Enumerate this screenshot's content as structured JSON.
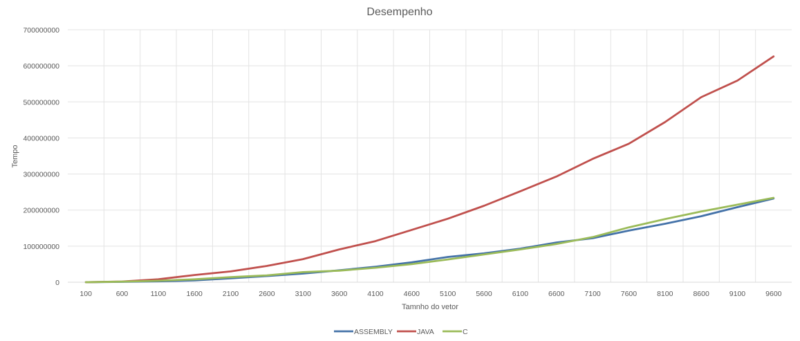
{
  "chart_data": {
    "type": "line",
    "title": "Desempenho",
    "xlabel": "Tamnho do vetor",
    "ylabel": "Tempo",
    "ylim": [
      0,
      700000000
    ],
    "yticks": [
      "0",
      "100000000",
      "200000000",
      "300000000",
      "400000000",
      "500000000",
      "600000000",
      "700000000"
    ],
    "grid": true,
    "legend_position": "bottom",
    "categories": [
      "100",
      "600",
      "1100",
      "1600",
      "2100",
      "2600",
      "3100",
      "3600",
      "4100",
      "4600",
      "5100",
      "5600",
      "6100",
      "6600",
      "7100",
      "7600",
      "8100",
      "8600",
      "9100",
      "9600"
    ],
    "series": [
      {
        "name": "ASSEMBLY",
        "color": "#4472A8",
        "values": [
          0,
          1000000,
          2500000,
          5000000,
          11000000,
          17000000,
          24000000,
          33000000,
          43000000,
          55000000,
          70000000,
          80000000,
          93000000,
          110000000,
          122000000,
          143000000,
          162000000,
          183000000,
          208000000,
          232000000
        ]
      },
      {
        "name": "JAVA",
        "color": "#C0504D",
        "values": [
          0,
          2000000,
          8000000,
          20000000,
          30000000,
          45000000,
          64000000,
          91000000,
          114000000,
          145000000,
          176000000,
          212000000,
          252000000,
          293000000,
          342000000,
          384000000,
          444000000,
          513000000,
          559000000,
          626000000
        ]
      },
      {
        "name": "C",
        "color": "#9BBB59",
        "values": [
          0,
          1500000,
          4000000,
          8000000,
          14000000,
          19000000,
          28000000,
          32000000,
          40000000,
          50000000,
          63000000,
          77000000,
          91000000,
          106000000,
          125000000,
          152000000,
          175000000,
          196000000,
          215000000,
          234000000
        ]
      }
    ]
  }
}
